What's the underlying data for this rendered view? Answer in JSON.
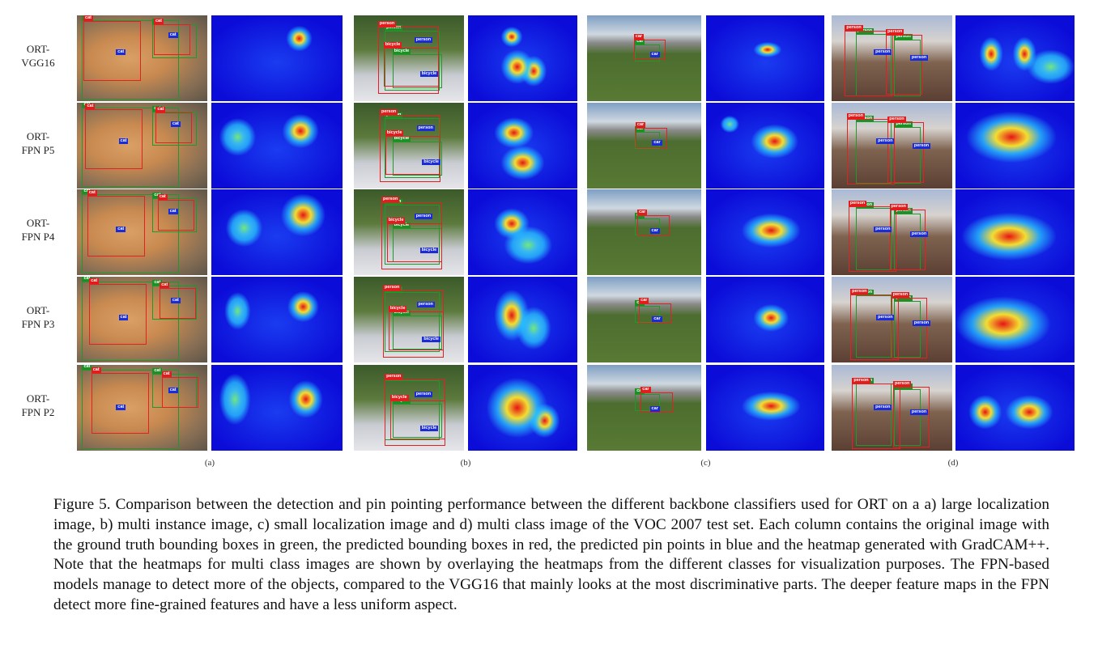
{
  "rows": [
    {
      "id": "vgg16",
      "label_line1": "ORT-",
      "label_line2": "VGG16"
    },
    {
      "id": "p5",
      "label_line1": "ORT-",
      "label_line2": "FPN P5"
    },
    {
      "id": "p4",
      "label_line1": "ORT-",
      "label_line2": "FPN P4"
    },
    {
      "id": "p3",
      "label_line1": "ORT-",
      "label_line2": "FPN P3"
    },
    {
      "id": "p2",
      "label_line1": "ORT-",
      "label_line2": "FPN P2"
    }
  ],
  "columns": [
    {
      "id": "a",
      "label": "(a)",
      "class_tag": "cat"
    },
    {
      "id": "b",
      "label": "(b)",
      "class_tag": "person",
      "class_tag2": "bicycle"
    },
    {
      "id": "c",
      "label": "(c)",
      "class_tag": "car"
    },
    {
      "id": "d",
      "label": "(d)",
      "class_tag": "person"
    }
  ],
  "colors": {
    "ground_truth": "#1f9a2a",
    "predicted": "#e22222",
    "pin_point": "#1a2bd8",
    "heatmap_low": "#0c0cd8"
  },
  "caption": "Figure 5. Comparison between the detection and pin pointing performance between the different backbone classifiers used for ORT on a a) large localization image, b) multi instance image, c) small localization image and d) multi class image of the VOC 2007 test set. Each column contains the original image with the ground truth bounding boxes in green, the predicted bounding boxes in red, the predicted pin points in blue and the heatmap generated with GradCAM++. Note that the heatmaps for multi class images are shown by overlaying the heatmaps from the different classes for visualization purposes. The FPN-based models manage to detect more of the objects, compared to the VGG16 that mainly looks at the most discriminative parts. The deeper feature maps in the FPN detect more fine-grained features and have a less uniform aspect."
}
